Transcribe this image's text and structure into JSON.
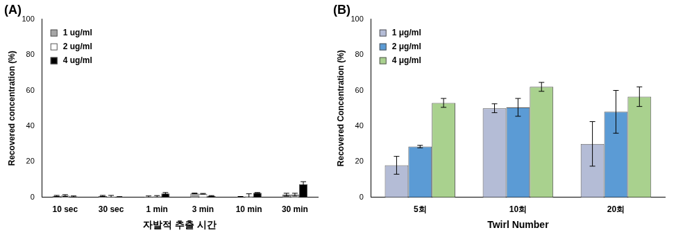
{
  "chart_data": [
    {
      "type": "bar",
      "title": "(A)",
      "x_label": "자발적 추출 시간",
      "y_label": "Recovered concentration (%)",
      "categories": [
        "10 sec",
        "30 sec",
        "1 min",
        "3 min",
        "10 min",
        "30 min"
      ],
      "series": [
        {
          "name": "1 ug/ml",
          "color": "#a6a6a6",
          "values": [
            0.8,
            0.8,
            0.3,
            2.2,
            0.2,
            1.5
          ],
          "errors": [
            0.3,
            0.3,
            0.5,
            0.2,
            0.3,
            0.8
          ]
        },
        {
          "name": "2 ug/ml",
          "color": "#ffffff",
          "values": [
            1.0,
            0.3,
            0.5,
            2.0,
            0.5,
            1.5
          ],
          "errors": [
            0.5,
            0.8,
            0.5,
            0.2,
            1.5,
            0.8
          ]
        },
        {
          "name": "4 ug/ml",
          "color": "#000000",
          "values": [
            0.5,
            0.2,
            2.2,
            0.8,
            2.5,
            7.3
          ],
          "errors": [
            0.3,
            0.2,
            0.5,
            0.2,
            0.2,
            1.5
          ]
        }
      ],
      "ylim": [
        0,
        100
      ],
      "yticks": [
        0,
        20,
        40,
        60,
        80,
        100
      ],
      "grid": false,
      "legend": "upper left"
    },
    {
      "type": "bar",
      "title": "(B)",
      "x_label": "Twirl Number",
      "y_label": "Recovered Concentration (%)",
      "categories": [
        "5회",
        "10회",
        "20회"
      ],
      "series": [
        {
          "name": "1 μg/ml",
          "color": "#b4bcd6",
          "values": [
            18,
            50,
            30
          ],
          "errors": [
            5,
            2.5,
            12.5
          ]
        },
        {
          "name": "2 μg/ml",
          "color": "#5b9bd5",
          "values": [
            28.5,
            50.5,
            48
          ],
          "errors": [
            0.7,
            5,
            12
          ]
        },
        {
          "name": "4 μg/ml",
          "color": "#a9d18e",
          "values": [
            53,
            62,
            56.5
          ],
          "errors": [
            2.5,
            2.5,
            5.5
          ]
        }
      ],
      "ylim": [
        0,
        100
      ],
      "yticks": [
        0,
        20,
        40,
        60,
        80,
        100
      ],
      "grid": false,
      "legend": "upper left"
    }
  ]
}
